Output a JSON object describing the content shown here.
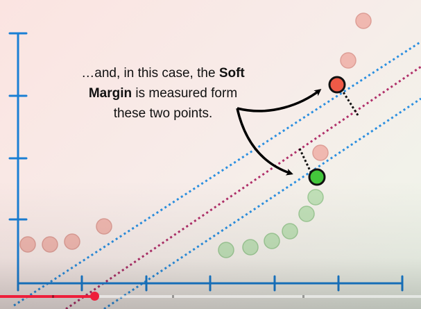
{
  "caption": {
    "line1_prefix": "…and, in this case, the ",
    "line1_bold": "Soft",
    "line2_bold": "Margin",
    "line2_rest": " is measured form",
    "line3": "these two points."
  },
  "colors": {
    "axis": "#1a7fd4",
    "margin_line": "#2b8fe0",
    "classifier_line": "#b0306a",
    "red_point": "#ef5a47",
    "green_point": "#43c63b",
    "faded_red": "#f0b6ae",
    "faded_green": "#bfe0b6",
    "progress": "#ee1f3b"
  },
  "player": {
    "progress_fraction": 0.224
  }
}
